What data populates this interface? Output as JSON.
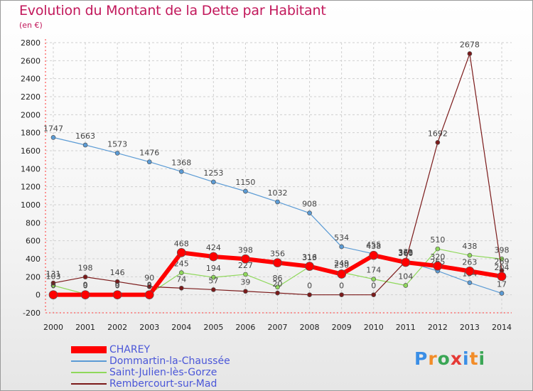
{
  "title": "Evolution du Montant de la Dette par Habitant",
  "unit": "(en €)",
  "brand": "Proxiti",
  "brand_colors": [
    "#3a8ee6",
    "#f28c28",
    "#3aa655",
    "#e53935",
    "#3a8ee6",
    "#f28c28",
    "#3aa655"
  ],
  "chart_data": {
    "type": "line",
    "title": "Evolution du Montant de la Dette par Habitant",
    "ylabel": "(en €)",
    "xlabel": "",
    "ylim": [
      -200,
      2800
    ],
    "yticks": [
      -200,
      0,
      200,
      400,
      600,
      800,
      1000,
      1200,
      1400,
      1600,
      1800,
      2000,
      2200,
      2400,
      2600,
      2800
    ],
    "categories": [
      "2000",
      "2001",
      "2002",
      "2003",
      "2004",
      "2005",
      "2006",
      "2007",
      "2008",
      "2009",
      "2010",
      "2011",
      "2012",
      "2013",
      "2014"
    ],
    "grid": true,
    "series": [
      {
        "name": "Dommartin-la-Chaussée",
        "color": "#5b9bd5",
        "values": [
          1747,
          1663,
          1573,
          1476,
          1368,
          1253,
          1150,
          1032,
          908,
          534,
          455,
          368,
          265,
          134,
          17
        ],
        "labels": [
          "1747",
          "1663",
          "1573",
          "1476",
          "1368",
          "1253",
          "1150",
          "1032",
          "908",
          "534",
          "455",
          "368",
          "265",
          "134",
          "17"
        ]
      },
      {
        "name": "Saint-Julien-lès-Gorze",
        "color": "#8fd85b",
        "values": [
          103,
          9,
          9,
          9,
          245,
          194,
          227,
          86,
          313,
          249,
          174,
          104,
          510,
          438,
          398
        ],
        "labels": [
          "103",
          "9",
          "9",
          "9",
          "245",
          "194",
          "227",
          "86",
          "313",
          "249",
          "174",
          "104",
          "510",
          "438",
          "398"
        ]
      },
      {
        "name": "Rembercourt-sur-Mad",
        "color": "#7b1a1a",
        "values": [
          131,
          198,
          146,
          90,
          74,
          57,
          39,
          20,
          0,
          0,
          0,
          371,
          1692,
          2678,
          269
        ],
        "labels": [
          "131",
          "198",
          "146",
          "90",
          "74",
          "57",
          "39",
          "20",
          "0",
          "0",
          "0",
          "371",
          "1692",
          "2678",
          "269"
        ]
      },
      {
        "name": "CHAREY",
        "color": "#ff0000",
        "values": [
          0,
          0,
          0,
          0,
          468,
          424,
          398,
          356,
          316,
          230,
          438,
          360,
          320,
          263,
          204
        ],
        "labels": [
          "0",
          "0",
          "0",
          "0",
          "468",
          "424",
          "398",
          "356",
          "316",
          "230",
          "438",
          "360",
          "320",
          "263",
          "204"
        ]
      }
    ]
  },
  "legend": [
    {
      "name": "CHAREY",
      "color": "#ff0000",
      "thick": true
    },
    {
      "name": "Dommartin-la-Chaussée",
      "color": "#5b9bd5",
      "thick": false
    },
    {
      "name": "Saint-Julien-lès-Gorze",
      "color": "#8fd85b",
      "thick": false
    },
    {
      "name": "Rembercourt-sur-Mad",
      "color": "#7b1a1a",
      "thick": false
    }
  ]
}
